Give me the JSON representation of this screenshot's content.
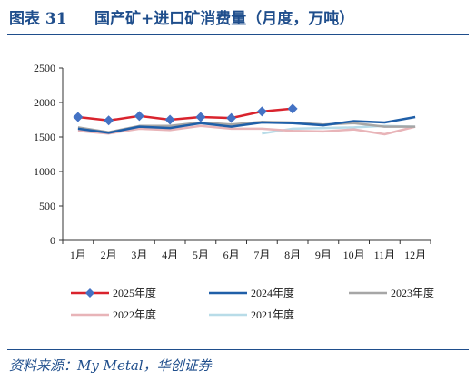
{
  "header": {
    "fig_label": "图表 31",
    "title": "国产矿+进口矿消费量（月度，万吨）"
  },
  "source": "资料来源：My Metal，华创证券",
  "chart_data": {
    "type": "line",
    "categories": [
      "1月",
      "2月",
      "3月",
      "4月",
      "5月",
      "6月",
      "7月",
      "8月",
      "9月",
      "10月",
      "11月",
      "12月"
    ],
    "ylim": [
      0,
      2500
    ],
    "yticks": [
      0,
      500,
      1000,
      1500,
      2000,
      2500
    ],
    "grid": false,
    "legend_placement": "bottom",
    "series": [
      {
        "name": "2025年度",
        "color": "#d9232d",
        "marker": "diamond",
        "marker_color": "#4472c4",
        "values": [
          1790,
          1740,
          1805,
          1750,
          1790,
          1775,
          1870,
          1910,
          null,
          null,
          null,
          null
        ]
      },
      {
        "name": "2024年度",
        "color": "#1f5fa8",
        "marker": "none",
        "values": [
          1620,
          1560,
          1650,
          1630,
          1700,
          1650,
          1710,
          1700,
          1670,
          1730,
          1710,
          1790
        ]
      },
      {
        "name": "2023年度",
        "color": "#a6a6a6",
        "marker": "none",
        "values": [
          1640,
          1570,
          1660,
          1660,
          1710,
          1680,
          1720,
          1710,
          1680,
          1700,
          1650,
          1650
        ]
      },
      {
        "name": "2022年度",
        "color": "#e8b4b8",
        "marker": "none",
        "values": [
          1590,
          1550,
          1620,
          1600,
          1660,
          1620,
          1620,
          1590,
          1580,
          1610,
          1540,
          1650
        ]
      },
      {
        "name": "2021年度",
        "color": "#b8dce8",
        "marker": "none",
        "values": [
          null,
          null,
          null,
          null,
          null,
          null,
          1550,
          1620,
          1630,
          1640,
          1660,
          1650
        ]
      }
    ]
  }
}
